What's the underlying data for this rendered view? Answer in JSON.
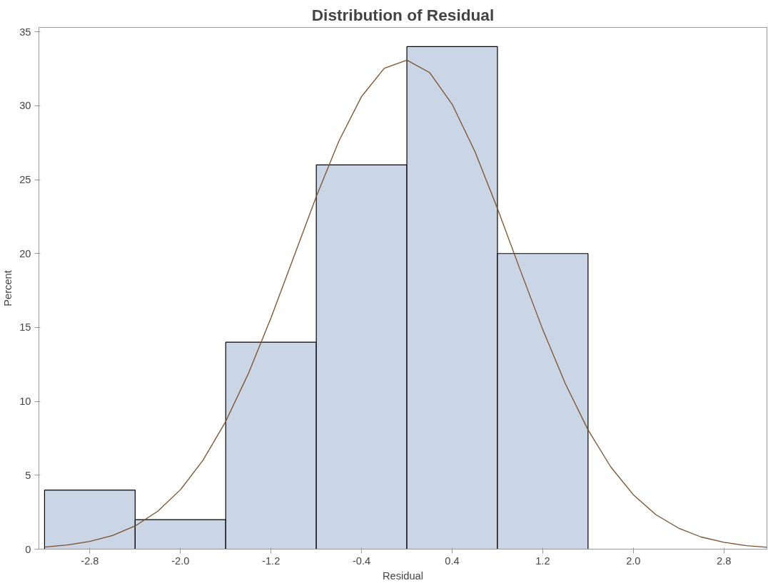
{
  "chart_data": {
    "type": "histogram",
    "title": "Distribution of Residual",
    "xlabel": "Residual",
    "ylabel": "Percent",
    "bins": [
      -3.2,
      -2.4,
      -1.6,
      -0.8,
      0,
      0.8,
      1.6
    ],
    "values": [
      4,
      2,
      14,
      26,
      34,
      20
    ],
    "color": "#cad5e5",
    "series": [
      {
        "type": "line",
        "color": "#7b4f2a",
        "x": [
          -3.2,
          -3.0,
          -2.8,
          -2.6,
          -2.4,
          -2.2,
          -2.0,
          -1.8,
          -1.6,
          -1.4,
          -1.2,
          -1.0,
          -0.8,
          -0.6,
          -0.4,
          -0.2,
          0,
          0.2,
          0.4,
          0.6,
          0.8,
          1.0,
          1.2,
          1.4,
          1.6,
          1.8,
          2.0,
          2.2,
          2.4,
          2.6,
          2.8,
          3.0,
          3.18
        ],
        "values": [
          0.14,
          0.28,
          0.52,
          0.92,
          1.57,
          2.57,
          4.02,
          6.02,
          8.64,
          11.88,
          15.65,
          19.75,
          23.86,
          27.62,
          30.63,
          32.53,
          33.09,
          32.25,
          30.1,
          26.92,
          23.05,
          18.91,
          14.86,
          11.19,
          8.07,
          5.57,
          3.68,
          2.33,
          1.42,
          0.82,
          0.46,
          0.24,
          0.13
        ]
      }
    ],
    "xlim": [
      -3.25,
      3.18
    ],
    "ylim": [
      0,
      35.3
    ],
    "xticks": [
      -2.8,
      {
        "value": -2.0,
        "label": "-2.0"
      },
      -1.2,
      -0.4,
      0.4,
      1.2,
      {
        "value": 2.0,
        "label": "2.0"
      },
      2.8
    ],
    "yticks": [
      0,
      5,
      10,
      15,
      20,
      25,
      30,
      35
    ],
    "grid": false
  }
}
